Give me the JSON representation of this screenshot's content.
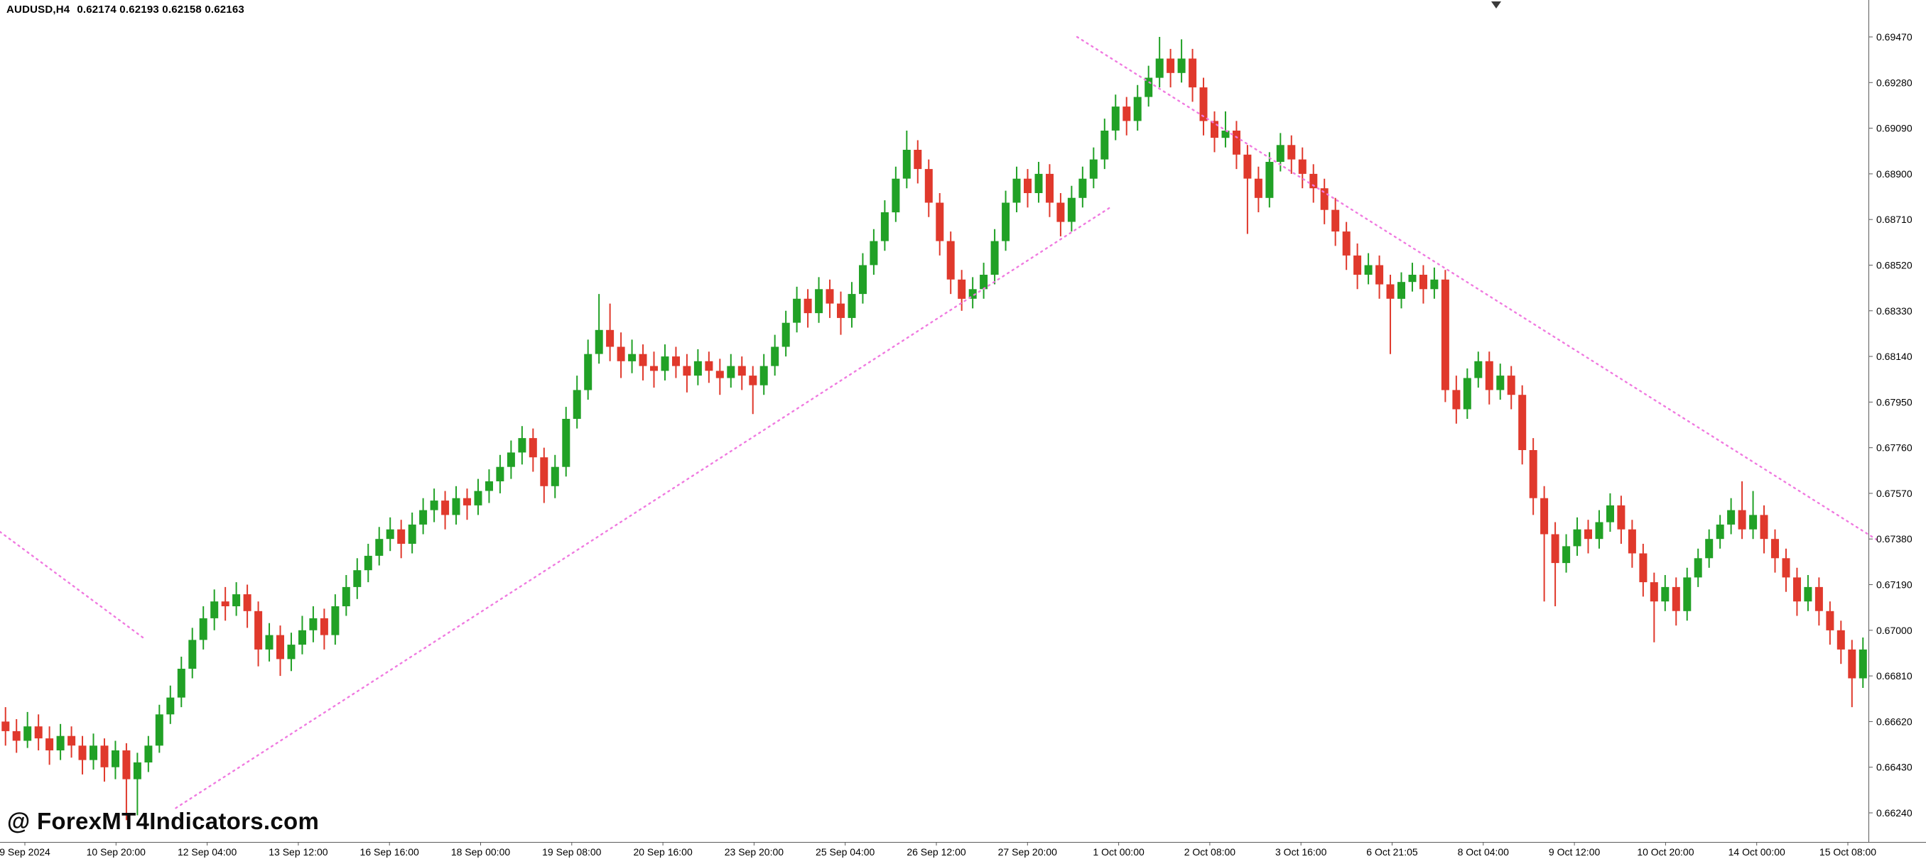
{
  "header": {
    "symbol_title": "AUDUSD,H4",
    "ohlc_text": "0.62174 0.62193 0.62158 0.62163"
  },
  "watermark": "@ ForexMT4Indicators.com",
  "chart_data": {
    "type": "candlestick",
    "symbol": "AUDUSD",
    "timeframe": "H4",
    "title": "AUDUSD,H4 0.62174 0.62193 0.62158 0.62163",
    "ohlc_readout": {
      "open": "0.62174",
      "high": "0.62193",
      "low": "0.62158",
      "close": "0.62163"
    },
    "ylim": [
      0.66107,
      0.69624
    ],
    "grid": "off",
    "legend": "none",
    "price_axis_ticks": [
      "0.69470",
      "0.69280",
      "0.69090",
      "0.68900",
      "0.68710",
      "0.68520",
      "0.68330",
      "0.68140",
      "0.67950",
      "0.67760",
      "0.67570",
      "0.67380",
      "0.67190",
      "0.67000",
      "0.66810",
      "0.66620",
      "0.66430",
      "0.66240"
    ],
    "time_axis_ticks": [
      "9 Sep 2024",
      "10 Sep 20:00",
      "12 Sep 04:00",
      "13 Sep 12:00",
      "16 Sep 16:00",
      "18 Sep 00:00",
      "19 Sep 08:00",
      "20 Sep 16:00",
      "23 Sep 20:00",
      "25 Sep 04:00",
      "26 Sep 12:00",
      "27 Sep 20:00",
      "1 Oct 00:00",
      "2 Oct 08:00",
      "3 Oct 16:00",
      "6 Oct 21:05",
      "8 Oct 04:00",
      "9 Oct 12:00",
      "10 Oct 20:00",
      "14 Oct 00:00",
      "15 Oct 08:00"
    ],
    "colors": {
      "bull": "#21a126",
      "bear": "#e0392c",
      "indicator_dots": "#f07ae0",
      "background": "#ffffff",
      "axis_text": "#000000",
      "axis_line": "#5a5a5a",
      "scroll_marker": "#3a3a3a"
    },
    "indicator": {
      "name": "dotted-trendline-indicator",
      "style": "dotted",
      "color": "#f07ae0",
      "segments": [
        [
          [
            0,
            0.6741
          ],
          [
            13,
            0.6697
          ]
        ],
        [
          [
            16,
            0.6626
          ],
          [
            101,
            0.6876
          ]
        ],
        [
          [
            98,
            0.6947
          ],
          [
            171,
            0.6737
          ]
        ]
      ]
    },
    "candles": [
      [
        0.6662,
        0.6668,
        0.6652,
        0.6658
      ],
      [
        0.6658,
        0.6663,
        0.6649,
        0.6654
      ],
      [
        0.6654,
        0.6666,
        0.6651,
        0.666
      ],
      [
        0.666,
        0.6665,
        0.665,
        0.6655
      ],
      [
        0.6655,
        0.666,
        0.6644,
        0.665
      ],
      [
        0.665,
        0.6661,
        0.6646,
        0.6656
      ],
      [
        0.6656,
        0.666,
        0.6647,
        0.6652
      ],
      [
        0.6652,
        0.6656,
        0.664,
        0.6646
      ],
      [
        0.6646,
        0.6657,
        0.6642,
        0.6652
      ],
      [
        0.6652,
        0.6655,
        0.6637,
        0.6643
      ],
      [
        0.6643,
        0.6654,
        0.6638,
        0.665
      ],
      [
        0.665,
        0.6653,
        0.6621,
        0.6638
      ],
      [
        0.6638,
        0.6649,
        0.6623,
        0.6645
      ],
      [
        0.6645,
        0.6656,
        0.6641,
        0.6652
      ],
      [
        0.6652,
        0.6669,
        0.6649,
        0.6665
      ],
      [
        0.6665,
        0.6677,
        0.6661,
        0.6672
      ],
      [
        0.6672,
        0.6689,
        0.6668,
        0.6684
      ],
      [
        0.6684,
        0.6701,
        0.668,
        0.6696
      ],
      [
        0.6696,
        0.671,
        0.6692,
        0.6705
      ],
      [
        0.6705,
        0.6717,
        0.67,
        0.6712
      ],
      [
        0.6712,
        0.6718,
        0.6704,
        0.671
      ],
      [
        0.671,
        0.672,
        0.6706,
        0.6715
      ],
      [
        0.6715,
        0.6719,
        0.6701,
        0.6708
      ],
      [
        0.6708,
        0.6712,
        0.6685,
        0.6692
      ],
      [
        0.6692,
        0.6703,
        0.6687,
        0.6698
      ],
      [
        0.6698,
        0.6702,
        0.6681,
        0.6688
      ],
      [
        0.6688,
        0.6699,
        0.6683,
        0.6694
      ],
      [
        0.6694,
        0.6706,
        0.669,
        0.67
      ],
      [
        0.67,
        0.671,
        0.6695,
        0.6705
      ],
      [
        0.6705,
        0.6709,
        0.6692,
        0.6698
      ],
      [
        0.6698,
        0.6715,
        0.6694,
        0.671
      ],
      [
        0.671,
        0.6723,
        0.6706,
        0.6718
      ],
      [
        0.6718,
        0.673,
        0.6713,
        0.6725
      ],
      [
        0.6725,
        0.6736,
        0.672,
        0.6731
      ],
      [
        0.6731,
        0.6743,
        0.6727,
        0.6738
      ],
      [
        0.6738,
        0.6747,
        0.6733,
        0.6742
      ],
      [
        0.6742,
        0.6746,
        0.673,
        0.6736
      ],
      [
        0.6736,
        0.6749,
        0.6732,
        0.6744
      ],
      [
        0.6744,
        0.6755,
        0.674,
        0.675
      ],
      [
        0.675,
        0.6759,
        0.6745,
        0.6754
      ],
      [
        0.6754,
        0.6758,
        0.6742,
        0.6748
      ],
      [
        0.6748,
        0.676,
        0.6744,
        0.6755
      ],
      [
        0.6755,
        0.6759,
        0.6746,
        0.6752
      ],
      [
        0.6752,
        0.6763,
        0.6748,
        0.6758
      ],
      [
        0.6758,
        0.6767,
        0.6753,
        0.6762
      ],
      [
        0.6762,
        0.6773,
        0.6757,
        0.6768
      ],
      [
        0.6768,
        0.6779,
        0.6763,
        0.6774
      ],
      [
        0.6774,
        0.6785,
        0.6769,
        0.678
      ],
      [
        0.678,
        0.6784,
        0.6766,
        0.6772
      ],
      [
        0.6772,
        0.6776,
        0.6753,
        0.676
      ],
      [
        0.676,
        0.6773,
        0.6755,
        0.6768
      ],
      [
        0.6768,
        0.6793,
        0.6764,
        0.6788
      ],
      [
        0.6788,
        0.6806,
        0.6784,
        0.68
      ],
      [
        0.68,
        0.6821,
        0.6796,
        0.6815
      ],
      [
        0.6815,
        0.684,
        0.6811,
        0.6825
      ],
      [
        0.6825,
        0.6836,
        0.6812,
        0.6818
      ],
      [
        0.6818,
        0.6824,
        0.6805,
        0.6812
      ],
      [
        0.6812,
        0.6821,
        0.6807,
        0.6815
      ],
      [
        0.6815,
        0.6819,
        0.6804,
        0.681
      ],
      [
        0.681,
        0.6816,
        0.6801,
        0.6808
      ],
      [
        0.6808,
        0.6819,
        0.6804,
        0.6814
      ],
      [
        0.6814,
        0.6818,
        0.6805,
        0.681
      ],
      [
        0.681,
        0.6815,
        0.6799,
        0.6806
      ],
      [
        0.6806,
        0.6817,
        0.6802,
        0.6812
      ],
      [
        0.6812,
        0.6816,
        0.6803,
        0.6808
      ],
      [
        0.6808,
        0.6813,
        0.6798,
        0.6805
      ],
      [
        0.6805,
        0.6815,
        0.6801,
        0.681
      ],
      [
        0.681,
        0.6814,
        0.68,
        0.6806
      ],
      [
        0.6806,
        0.681,
        0.679,
        0.6802
      ],
      [
        0.6802,
        0.6815,
        0.6798,
        0.681
      ],
      [
        0.681,
        0.6823,
        0.6806,
        0.6818
      ],
      [
        0.6818,
        0.6833,
        0.6814,
        0.6828
      ],
      [
        0.6828,
        0.6843,
        0.6824,
        0.6838
      ],
      [
        0.6838,
        0.6842,
        0.6826,
        0.6832
      ],
      [
        0.6832,
        0.6847,
        0.6828,
        0.6842
      ],
      [
        0.6842,
        0.6846,
        0.683,
        0.6836
      ],
      [
        0.6836,
        0.6841,
        0.6823,
        0.683
      ],
      [
        0.683,
        0.6845,
        0.6826,
        0.684
      ],
      [
        0.684,
        0.6857,
        0.6836,
        0.6852
      ],
      [
        0.6852,
        0.6867,
        0.6848,
        0.6862
      ],
      [
        0.6862,
        0.6879,
        0.6858,
        0.6874
      ],
      [
        0.6874,
        0.6893,
        0.687,
        0.6888
      ],
      [
        0.6888,
        0.6908,
        0.6884,
        0.69
      ],
      [
        0.69,
        0.6904,
        0.6886,
        0.6892
      ],
      [
        0.6892,
        0.6896,
        0.6872,
        0.6878
      ],
      [
        0.6878,
        0.6882,
        0.6856,
        0.6862
      ],
      [
        0.6862,
        0.6866,
        0.684,
        0.6846
      ],
      [
        0.6846,
        0.685,
        0.6833,
        0.6838
      ],
      [
        0.6838,
        0.6847,
        0.6834,
        0.6842
      ],
      [
        0.6842,
        0.6853,
        0.6838,
        0.6848
      ],
      [
        0.6848,
        0.6867,
        0.6844,
        0.6862
      ],
      [
        0.6862,
        0.6883,
        0.6858,
        0.6878
      ],
      [
        0.6878,
        0.6893,
        0.6874,
        0.6888
      ],
      [
        0.6888,
        0.6892,
        0.6876,
        0.6882
      ],
      [
        0.6882,
        0.6895,
        0.6878,
        0.689
      ],
      [
        0.689,
        0.6894,
        0.6872,
        0.6878
      ],
      [
        0.6878,
        0.6882,
        0.6864,
        0.687
      ],
      [
        0.687,
        0.6885,
        0.6866,
        0.688
      ],
      [
        0.688,
        0.6893,
        0.6876,
        0.6888
      ],
      [
        0.6888,
        0.6901,
        0.6884,
        0.6896
      ],
      [
        0.6896,
        0.6913,
        0.6892,
        0.6908
      ],
      [
        0.6908,
        0.6923,
        0.6904,
        0.6918
      ],
      [
        0.6918,
        0.6922,
        0.6906,
        0.6912
      ],
      [
        0.6912,
        0.6927,
        0.6908,
        0.6922
      ],
      [
        0.6922,
        0.6935,
        0.6918,
        0.693
      ],
      [
        0.693,
        0.6947,
        0.6926,
        0.6938
      ],
      [
        0.6938,
        0.6942,
        0.6926,
        0.6932
      ],
      [
        0.6932,
        0.6946,
        0.6928,
        0.6938
      ],
      [
        0.6938,
        0.6942,
        0.692,
        0.6926
      ],
      [
        0.6926,
        0.693,
        0.6906,
        0.6912
      ],
      [
        0.6912,
        0.6916,
        0.6899,
        0.6905
      ],
      [
        0.6905,
        0.6916,
        0.6901,
        0.6908
      ],
      [
        0.6908,
        0.6912,
        0.6892,
        0.6898
      ],
      [
        0.6898,
        0.6902,
        0.6865,
        0.6888
      ],
      [
        0.6888,
        0.6893,
        0.6874,
        0.688
      ],
      [
        0.688,
        0.6899,
        0.6876,
        0.6895
      ],
      [
        0.6895,
        0.6907,
        0.6891,
        0.6902
      ],
      [
        0.6902,
        0.6906,
        0.689,
        0.6896
      ],
      [
        0.6896,
        0.6901,
        0.6884,
        0.689
      ],
      [
        0.689,
        0.6894,
        0.6878,
        0.6884
      ],
      [
        0.6884,
        0.6888,
        0.6869,
        0.6875
      ],
      [
        0.6875,
        0.688,
        0.686,
        0.6866
      ],
      [
        0.6866,
        0.687,
        0.685,
        0.6856
      ],
      [
        0.6856,
        0.6861,
        0.6842,
        0.6848
      ],
      [
        0.6848,
        0.6857,
        0.6844,
        0.6852
      ],
      [
        0.6852,
        0.6856,
        0.6838,
        0.6844
      ],
      [
        0.6844,
        0.6848,
        0.6815,
        0.6838
      ],
      [
        0.6838,
        0.6849,
        0.6834,
        0.6845
      ],
      [
        0.6845,
        0.6853,
        0.6841,
        0.6848
      ],
      [
        0.6848,
        0.6852,
        0.6836,
        0.6842
      ],
      [
        0.6842,
        0.6851,
        0.6838,
        0.6846
      ],
      [
        0.6846,
        0.685,
        0.6795,
        0.68
      ],
      [
        0.68,
        0.6806,
        0.6786,
        0.6792
      ],
      [
        0.6792,
        0.6809,
        0.6788,
        0.6805
      ],
      [
        0.6805,
        0.6816,
        0.6801,
        0.6812
      ],
      [
        0.6812,
        0.6816,
        0.6794,
        0.68
      ],
      [
        0.68,
        0.6811,
        0.6796,
        0.6806
      ],
      [
        0.6806,
        0.681,
        0.6792,
        0.6798
      ],
      [
        0.6798,
        0.6802,
        0.6769,
        0.6775
      ],
      [
        0.6775,
        0.678,
        0.6748,
        0.6755
      ],
      [
        0.6755,
        0.676,
        0.6712,
        0.674
      ],
      [
        0.674,
        0.6745,
        0.671,
        0.6728
      ],
      [
        0.6728,
        0.674,
        0.6724,
        0.6735
      ],
      [
        0.6735,
        0.6747,
        0.6731,
        0.6742
      ],
      [
        0.6742,
        0.6746,
        0.6732,
        0.6738
      ],
      [
        0.6738,
        0.675,
        0.6734,
        0.6745
      ],
      [
        0.6745,
        0.6757,
        0.6741,
        0.6752
      ],
      [
        0.6752,
        0.6756,
        0.6736,
        0.6742
      ],
      [
        0.6742,
        0.6746,
        0.6726,
        0.6732
      ],
      [
        0.6732,
        0.6736,
        0.6714,
        0.672
      ],
      [
        0.672,
        0.6724,
        0.6695,
        0.6712
      ],
      [
        0.6712,
        0.6723,
        0.6708,
        0.6718
      ],
      [
        0.6718,
        0.6722,
        0.6702,
        0.6708
      ],
      [
        0.6708,
        0.6726,
        0.6704,
        0.6722
      ],
      [
        0.6722,
        0.6734,
        0.6718,
        0.673
      ],
      [
        0.673,
        0.6742,
        0.6726,
        0.6738
      ],
      [
        0.6738,
        0.6748,
        0.6734,
        0.6744
      ],
      [
        0.6744,
        0.6755,
        0.674,
        0.675
      ],
      [
        0.675,
        0.6762,
        0.6738,
        0.6742
      ],
      [
        0.6742,
        0.6758,
        0.6738,
        0.6748
      ],
      [
        0.6748,
        0.6752,
        0.6732,
        0.6738
      ],
      [
        0.6738,
        0.6742,
        0.6724,
        0.673
      ],
      [
        0.673,
        0.6734,
        0.6716,
        0.6722
      ],
      [
        0.6722,
        0.6726,
        0.6706,
        0.6712
      ],
      [
        0.6712,
        0.6723,
        0.6708,
        0.6718
      ],
      [
        0.6718,
        0.6722,
        0.6702,
        0.6708
      ],
      [
        0.6708,
        0.6712,
        0.6694,
        0.67
      ],
      [
        0.67,
        0.6704,
        0.6686,
        0.6692
      ],
      [
        0.6692,
        0.6696,
        0.6668,
        0.668
      ],
      [
        0.668,
        0.6697,
        0.6676,
        0.6692
      ]
    ]
  }
}
